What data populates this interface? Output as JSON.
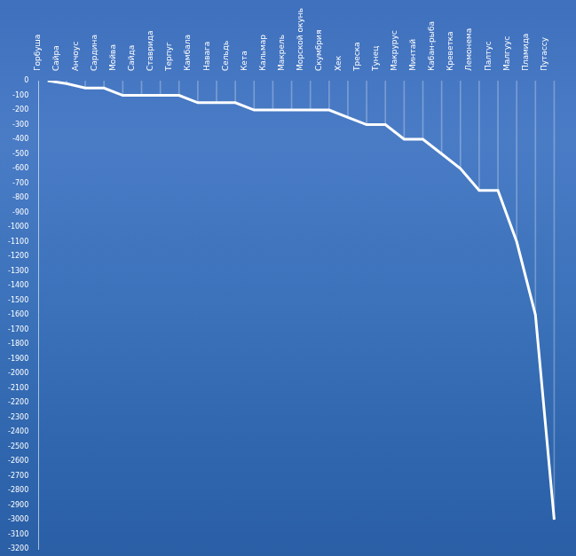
{
  "chart_data": {
    "type": "line",
    "categories": [
      "Горбуша",
      "Сайра",
      "Анчоус",
      "Сардина",
      "Мойва",
      "Сайда",
      "Ставрида",
      "Терпуг",
      "Камбала",
      "Навага",
      "Сельдь",
      "Кета",
      "Кальмар",
      "Макрель",
      "Морской окунь",
      "Скумбрия",
      "Хек",
      "Треска",
      "Тунец",
      "Макрурус",
      "Минтай",
      "Кабан-рыба",
      "Креветка",
      "Лемонема",
      "Палтус",
      "Малгуус",
      "Пламида",
      "Путассу"
    ],
    "values": [
      0,
      -20,
      -50,
      -50,
      -100,
      -100,
      -100,
      -100,
      -150,
      -150,
      -150,
      -200,
      -200,
      -200,
      -200,
      -200,
      -250,
      -300,
      -300,
      -400,
      -400,
      -500,
      -600,
      -750,
      -750,
      -1100,
      -1600,
      -3000
    ],
    "color": "#ffffff",
    "ylim": [
      -3200,
      0
    ],
    "yticks": [
      0,
      -100,
      -200,
      -300,
      -400,
      -500,
      -600,
      -700,
      -800,
      -900,
      -1000,
      -1100,
      -1200,
      -1300,
      -1400,
      -1500,
      -1600,
      -1700,
      -1800,
      -1900,
      -2000,
      -2100,
      -2200,
      -2300,
      -2400,
      -2500,
      -2600,
      -2700,
      -2800,
      -2900,
      -3000,
      -3100,
      -3200
    ],
    "grid": false
  }
}
